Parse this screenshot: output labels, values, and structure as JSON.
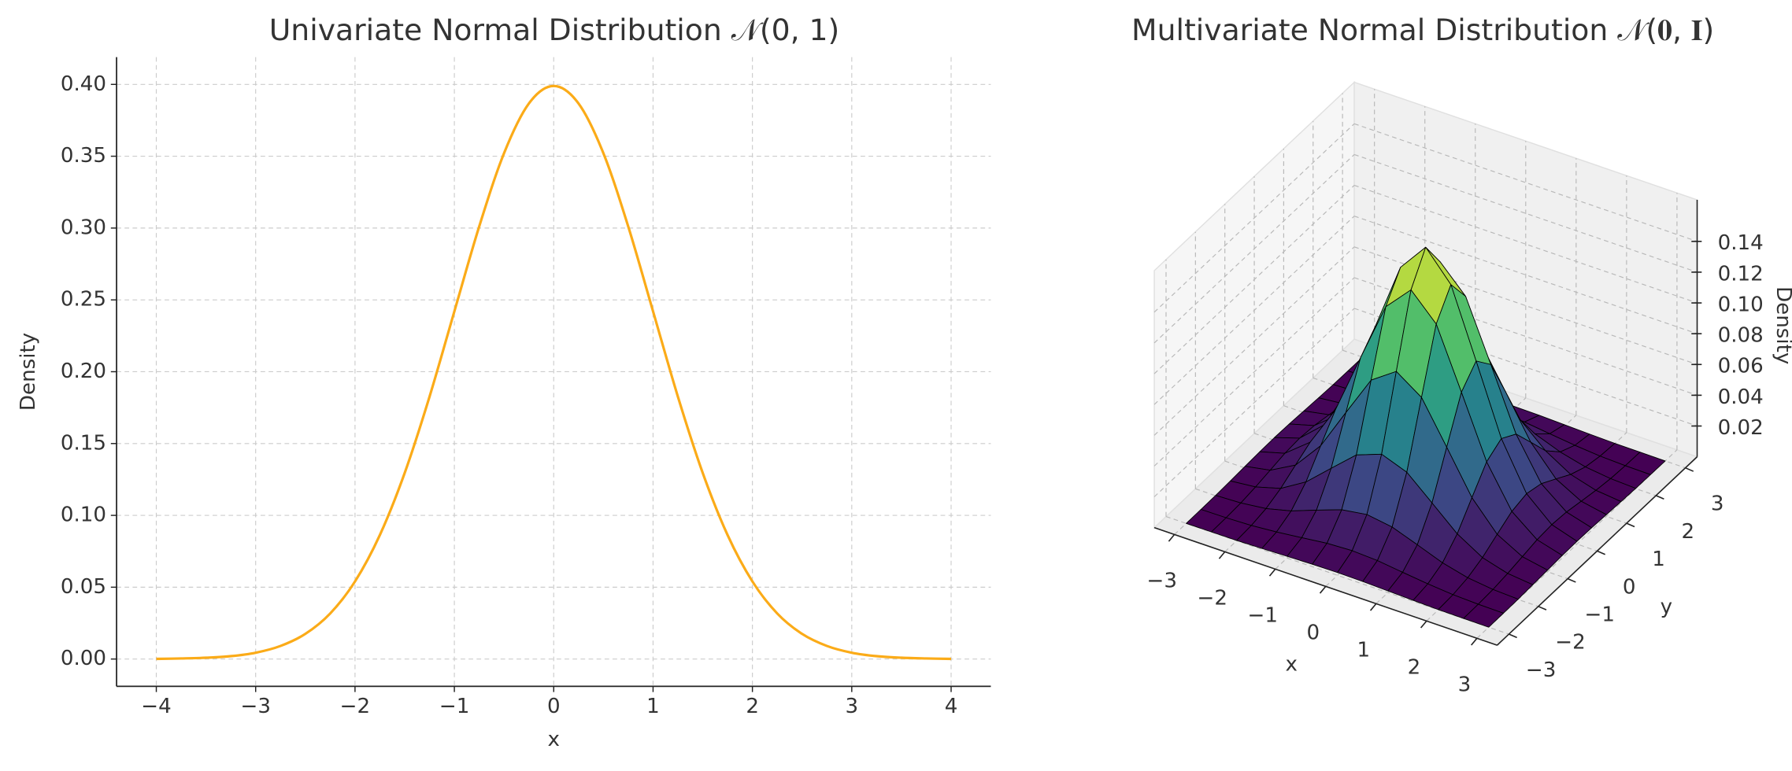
{
  "chart_data": [
    {
      "type": "line",
      "title": "Univariate Normal Distribution 𝒩(0, 1)",
      "xlabel": "x",
      "ylabel": "Density",
      "x": [
        -4,
        -3.75,
        -3.5,
        -3.25,
        -3,
        -2.75,
        -2.5,
        -2.25,
        -2,
        -1.75,
        -1.5,
        -1.25,
        -1,
        -0.75,
        -0.5,
        -0.25,
        0,
        0.25,
        0.5,
        0.75,
        1,
        1.25,
        1.5,
        1.75,
        2,
        2.25,
        2.5,
        2.75,
        3,
        3.25,
        3.5,
        3.75,
        4
      ],
      "values": [
        0.0001,
        0.0004,
        0.0009,
        0.002,
        0.0044,
        0.0091,
        0.0175,
        0.0317,
        0.054,
        0.0863,
        0.1295,
        0.1826,
        0.242,
        0.3011,
        0.3521,
        0.3867,
        0.3989,
        0.3867,
        0.3521,
        0.3011,
        0.242,
        0.1826,
        0.1295,
        0.0863,
        0.054,
        0.0317,
        0.0175,
        0.0091,
        0.0044,
        0.002,
        0.0009,
        0.0004,
        0.0001
      ],
      "color": "#fbab18",
      "xlim": [
        -4.4,
        4.4
      ],
      "ylim": [
        -0.019,
        0.419
      ],
      "xticks": [
        {
          "value": -4,
          "label": "−4"
        },
        {
          "value": -3,
          "label": "−3"
        },
        {
          "value": -2,
          "label": "−2"
        },
        {
          "value": -1,
          "label": "−1"
        },
        0,
        1,
        2,
        3,
        4
      ],
      "yticks": [
        {
          "value": 0,
          "label": "0.00"
        },
        {
          "value": 0.05,
          "label": "0.05"
        },
        {
          "value": 0.1,
          "label": "0.10"
        },
        {
          "value": 0.15,
          "label": "0.15"
        },
        {
          "value": 0.2,
          "label": "0.20"
        },
        {
          "value": 0.25,
          "label": "0.25"
        },
        {
          "value": 0.3,
          "label": "0.30"
        },
        {
          "value": 0.35,
          "label": "0.35"
        },
        {
          "value": 0.4,
          "label": "0.40"
        }
      ],
      "grid": true
    },
    {
      "type": "surface",
      "title": "Multivariate Normal Distribution 𝒩(𝟎, 𝐈)",
      "xlabel": "x",
      "ylabel": "y",
      "zlabel": "Density",
      "x": [
        -3,
        -2.5,
        -2,
        -1.5,
        -1,
        -0.5,
        0,
        0.5,
        1,
        1.5,
        2,
        2.5,
        3
      ],
      "y": [
        -3,
        -2.5,
        -2,
        -1.5,
        -1,
        -0.5,
        0,
        0.5,
        1,
        1.5,
        2,
        2.5,
        3
      ],
      "z": [
        [
          0,
          0.0001,
          0.0002,
          0.0006,
          0.0011,
          0.0016,
          0.0018,
          0.0016,
          0.0011,
          0.0006,
          0.0002,
          0.0001,
          0
        ],
        [
          0.0001,
          0.0003,
          0.0009,
          0.0023,
          0.0042,
          0.0062,
          0.007,
          0.0062,
          0.0042,
          0.0023,
          0.0009,
          0.0003,
          0.0001
        ],
        [
          0.0002,
          0.0009,
          0.0029,
          0.007,
          0.0131,
          0.019,
          0.0215,
          0.019,
          0.0131,
          0.007,
          0.0029,
          0.0009,
          0.0002
        ],
        [
          0.0006,
          0.0023,
          0.007,
          0.0168,
          0.0313,
          0.0456,
          0.0517,
          0.0456,
          0.0313,
          0.0168,
          0.007,
          0.0023,
          0.0006
        ],
        [
          0.0011,
          0.0042,
          0.0131,
          0.0313,
          0.0585,
          0.0852,
          0.0965,
          0.0852,
          0.0585,
          0.0313,
          0.0131,
          0.0042,
          0.0011
        ],
        [
          0.0016,
          0.0062,
          0.019,
          0.0456,
          0.0852,
          0.1239,
          0.1405,
          0.1239,
          0.0852,
          0.0456,
          0.019,
          0.0062,
          0.0016
        ],
        [
          0.0018,
          0.007,
          0.0215,
          0.0517,
          0.0965,
          0.1405,
          0.1592,
          0.1405,
          0.0965,
          0.0517,
          0.0215,
          0.007,
          0.0018
        ],
        [
          0.0016,
          0.0062,
          0.019,
          0.0456,
          0.0852,
          0.1239,
          0.1405,
          0.1239,
          0.0852,
          0.0456,
          0.019,
          0.0062,
          0.0016
        ],
        [
          0.0011,
          0.0042,
          0.0131,
          0.0313,
          0.0585,
          0.0852,
          0.0965,
          0.0852,
          0.0585,
          0.0313,
          0.0131,
          0.0042,
          0.0011
        ],
        [
          0.0006,
          0.0023,
          0.007,
          0.0168,
          0.0313,
          0.0456,
          0.0517,
          0.0456,
          0.0313,
          0.0168,
          0.007,
          0.0023,
          0.0006
        ],
        [
          0.0002,
          0.0009,
          0.0029,
          0.007,
          0.0131,
          0.019,
          0.0215,
          0.019,
          0.0131,
          0.007,
          0.0029,
          0.0009,
          0.0002
        ],
        [
          0.0001,
          0.0003,
          0.0009,
          0.0023,
          0.0042,
          0.0062,
          0.007,
          0.0062,
          0.0042,
          0.0023,
          0.0009,
          0.0003,
          0.0001
        ],
        [
          0,
          0.0001,
          0.0002,
          0.0006,
          0.0011,
          0.0016,
          0.0018,
          0.0016,
          0.0011,
          0.0006,
          0.0002,
          0.0001,
          0
        ]
      ],
      "colormap": "viridis",
      "edgecolor": "#000000",
      "xlim": [
        -3.4,
        3.4
      ],
      "ylim": [
        -3.4,
        3.4
      ],
      "zlim": [
        0,
        0.167
      ],
      "xticks": [
        {
          "value": -3,
          "label": "−3"
        },
        {
          "value": -2,
          "label": "−2"
        },
        {
          "value": -1,
          "label": "−1"
        },
        0,
        1,
        2,
        3
      ],
      "yticks": [
        {
          "value": -3,
          "label": "−3"
        },
        {
          "value": -2,
          "label": "−2"
        },
        {
          "value": -1,
          "label": "−1"
        },
        0,
        1,
        2,
        3
      ],
      "zticks": [
        {
          "value": 0.02,
          "label": "0.02"
        },
        {
          "value": 0.04,
          "label": "0.04"
        },
        {
          "value": 0.06,
          "label": "0.06"
        },
        {
          "value": 0.08,
          "label": "0.08"
        },
        {
          "value": 0.1,
          "label": "0.10"
        },
        {
          "value": 0.12,
          "label": "0.12"
        },
        {
          "value": 0.14,
          "label": "0.14"
        }
      ],
      "grid": true
    }
  ]
}
